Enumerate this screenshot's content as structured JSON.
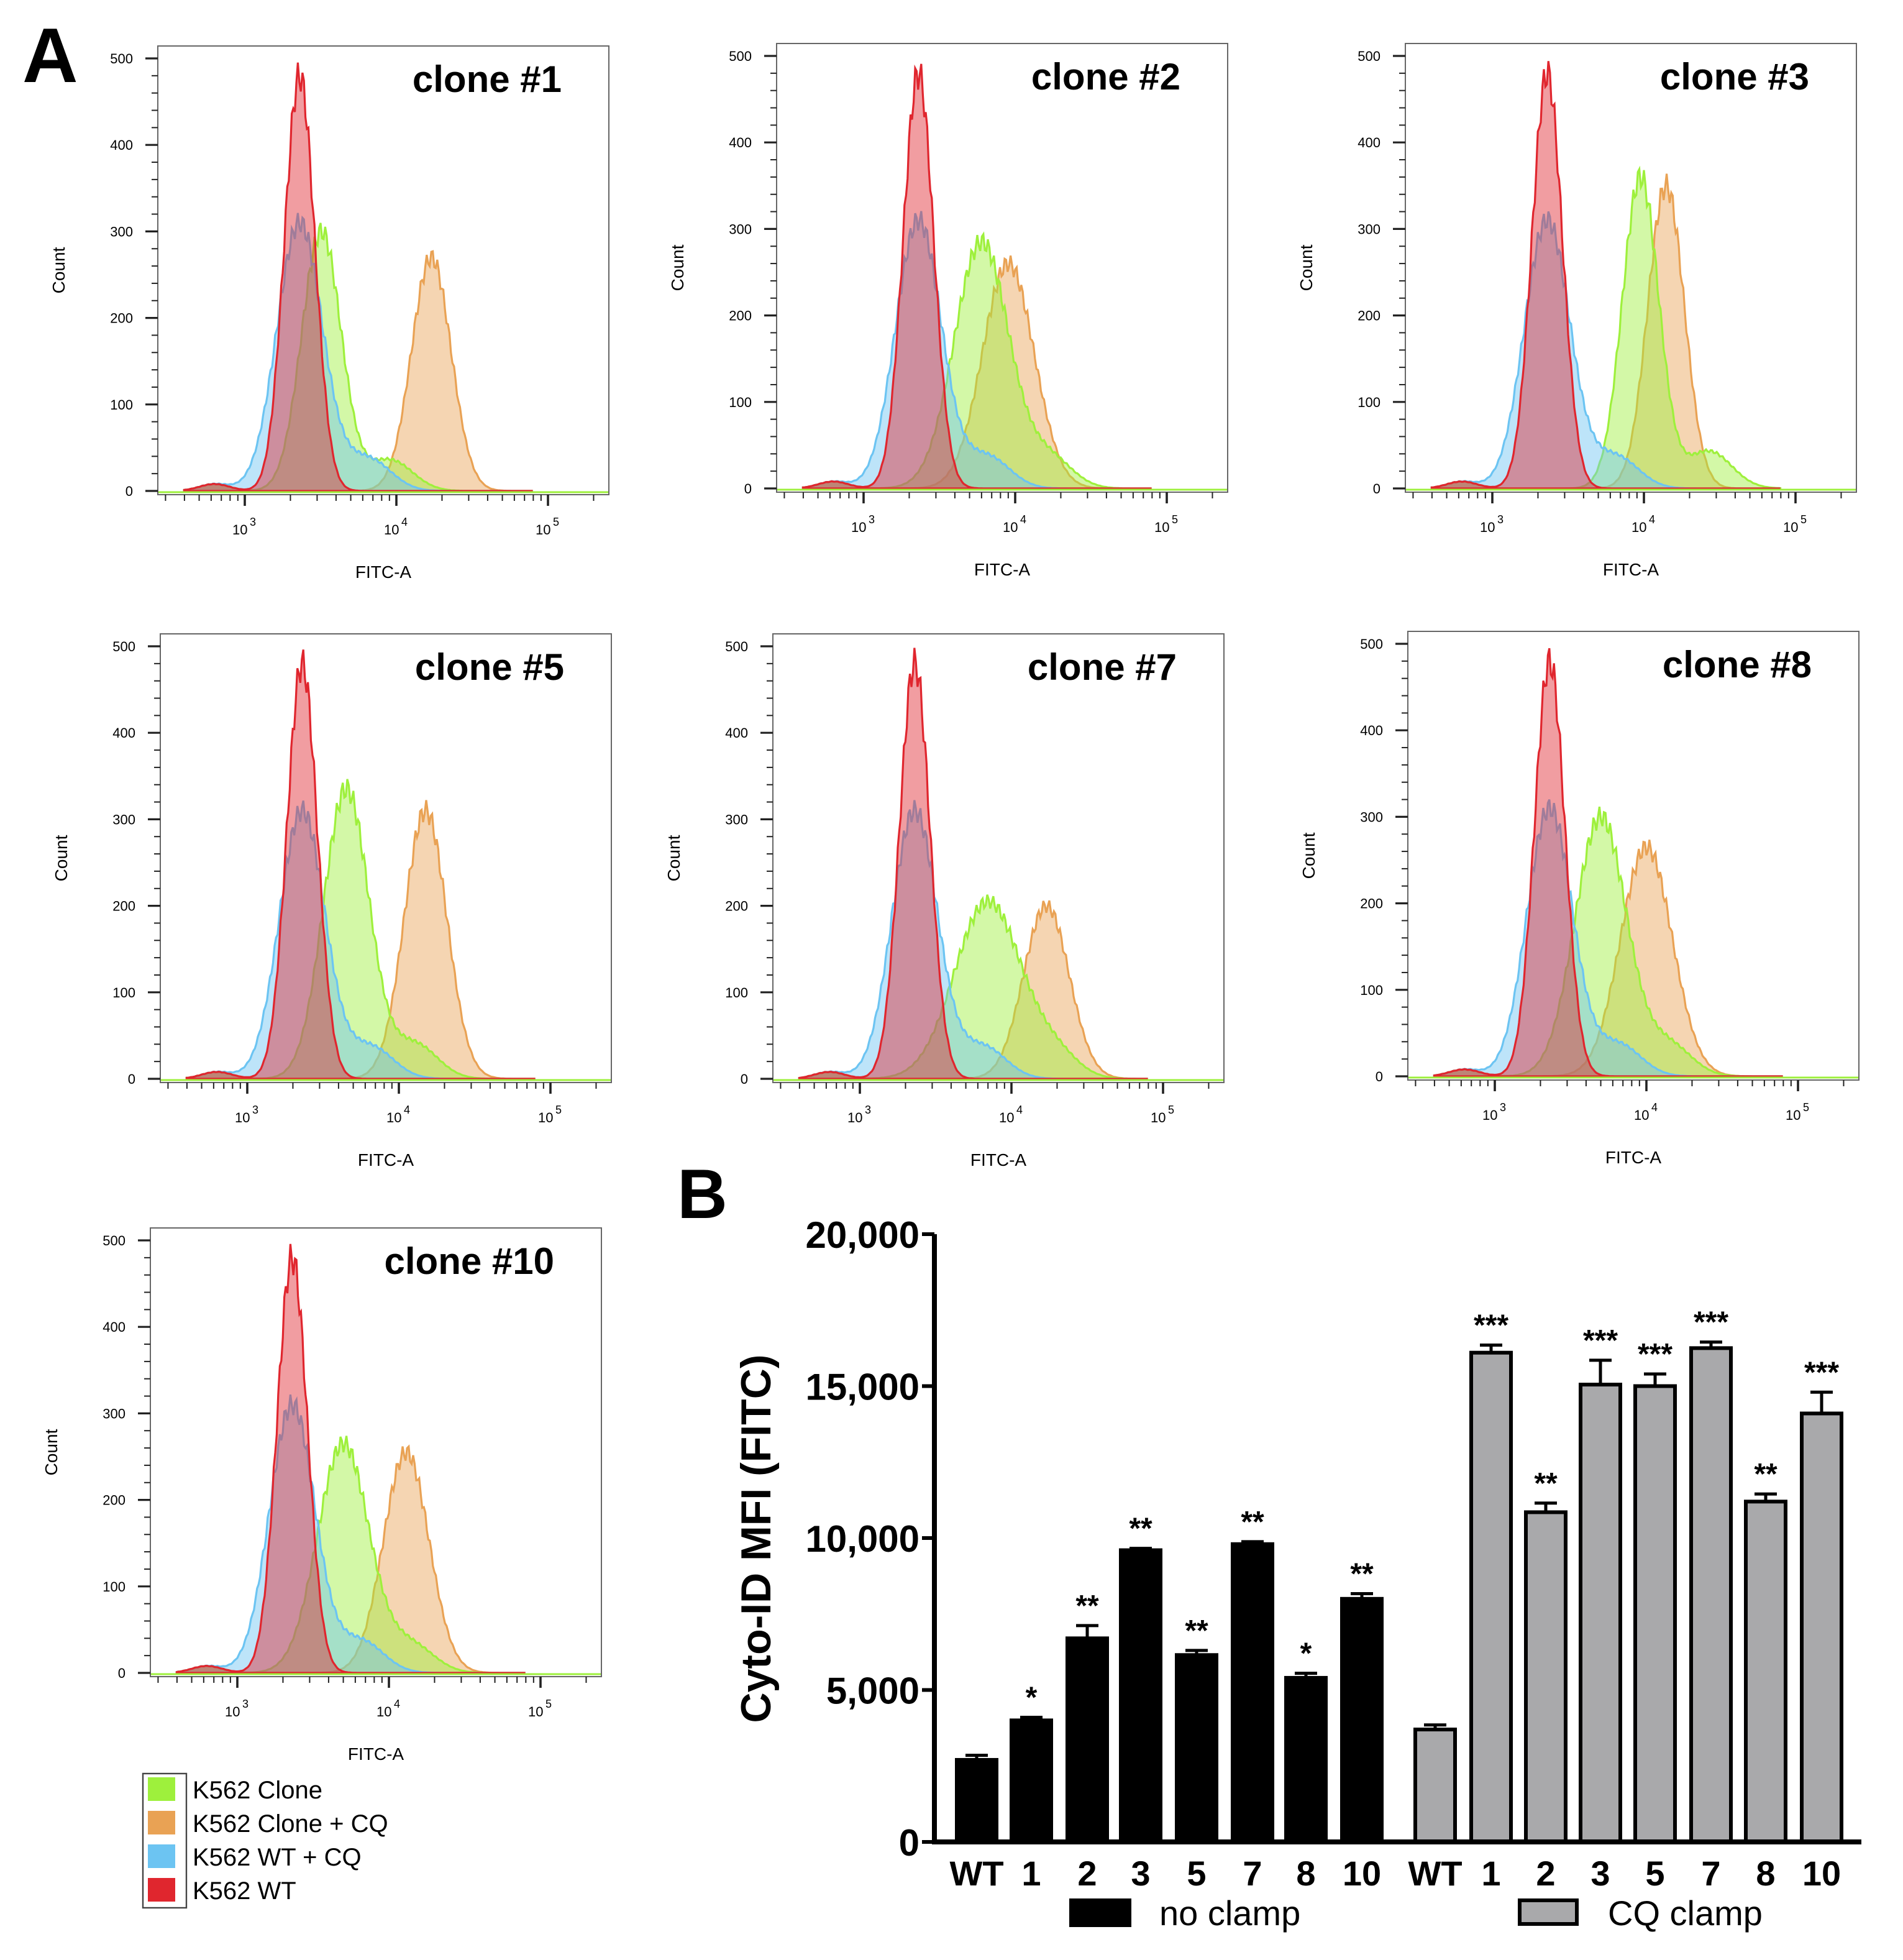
{
  "panel_a_label": "A",
  "panel_b_label": "B",
  "legend": [
    {
      "label": "K562 Clone",
      "color": "#9ef03c"
    },
    {
      "label": "K562 Clone + CQ",
      "color": "#e9a254"
    },
    {
      "label": "K562 WT + CQ",
      "color": "#6cc4f2"
    },
    {
      "label": "K562 WT",
      "color": "#e0262e"
    }
  ],
  "chart_data": [
    {
      "type": "area",
      "subtype": "flow-cytometry-histograms",
      "xlabel": "FITC-A",
      "ylabel": "Count",
      "xscale": "log",
      "xlim": [
        270,
        250000
      ],
      "ylim": [
        0,
        500
      ],
      "yticks": [
        "0",
        "100",
        "200",
        "300",
        "400",
        "500"
      ],
      "xticks": [
        {
          "base": "10",
          "exp": "3"
        },
        {
          "base": "10",
          "exp": "4"
        },
        {
          "base": "10",
          "exp": "5"
        }
      ],
      "series_colors": {
        "wt": "#e0262e",
        "wt_cq": "#6cc4f2",
        "clone": "#9ef03c",
        "clone_cq": "#e9a254"
      },
      "panels": [
        {
          "title": "clone #1",
          "peaks": {
            "wt": [
              2300,
              480,
              0.1
            ],
            "wt_cq": [
              2300,
              310,
              0.15
            ],
            "clone": [
              3200,
              300,
              0.13
            ],
            "clone_cq": [
              17000,
              270,
              0.13
            ]
          }
        },
        {
          "title": "clone #2",
          "peaks": {
            "wt": [
              2300,
              480,
              0.1
            ],
            "wt_cq": [
              2300,
              310,
              0.15
            ],
            "clone": [
              6000,
              285,
              0.18
            ],
            "clone_cq": [
              9000,
              260,
              0.17
            ]
          }
        },
        {
          "title": "clone #3",
          "peaks": {
            "wt": [
              2300,
              480,
              0.1
            ],
            "wt_cq": [
              2300,
              310,
              0.15
            ],
            "clone": [
              9500,
              360,
              0.12
            ],
            "clone_cq": [
              14000,
              350,
              0.12
            ]
          }
        },
        {
          "title": "clone #5",
          "peaks": {
            "wt": [
              2300,
              480,
              0.1
            ],
            "wt_cq": [
              2300,
              310,
              0.15
            ],
            "clone": [
              4500,
              335,
              0.15
            ],
            "clone_cq": [
              15000,
              310,
              0.14
            ]
          }
        },
        {
          "title": "clone #7",
          "peaks": {
            "wt": [
              2300,
              480,
              0.1
            ],
            "wt_cq": [
              2300,
              310,
              0.15
            ],
            "clone": [
              7000,
              205,
              0.22
            ],
            "clone_cq": [
              17000,
              200,
              0.15
            ]
          }
        },
        {
          "title": "clone #8",
          "peaks": {
            "wt": [
              2300,
              480,
              0.1
            ],
            "wt_cq": [
              2300,
              310,
              0.15
            ],
            "clone": [
              5000,
              300,
              0.17
            ],
            "clone_cq": [
              10000,
              265,
              0.17
            ]
          }
        },
        {
          "title": "clone #10",
          "peaks": {
            "wt": [
              2300,
              480,
              0.1
            ],
            "wt_cq": [
              2300,
              310,
              0.15
            ],
            "clone": [
              5000,
              265,
              0.17
            ],
            "clone_cq": [
              13000,
              255,
              0.15
            ]
          }
        }
      ]
    },
    {
      "type": "bar",
      "ylabel": "Cyto-ID MFI (FITC)",
      "ylim": [
        0,
        20000
      ],
      "yticks": [
        "0",
        "5,000",
        "10,000",
        "15,000",
        "20,000"
      ],
      "categories": [
        "WT",
        "1",
        "2",
        "3",
        "5",
        "7",
        "8",
        "10"
      ],
      "series": [
        {
          "name": "no clamp",
          "color": "#000000",
          "values": [
            2700,
            4000,
            6700,
            9600,
            6150,
            9800,
            5400,
            8000
          ],
          "errors": [
            150,
            100,
            420,
            60,
            150,
            80,
            150,
            170
          ],
          "significance": [
            "",
            "*",
            "**",
            "**",
            "**",
            "**",
            "*",
            "**"
          ]
        },
        {
          "name": "CQ clamp",
          "color": "#a9a9ab",
          "values": [
            3700,
            16100,
            10850,
            15050,
            15000,
            16250,
            11200,
            14100
          ],
          "errors": [
            150,
            250,
            300,
            800,
            400,
            200,
            250,
            700
          ],
          "significance": [
            "",
            "***",
            "**",
            "***",
            "***",
            "***",
            "**",
            "***"
          ]
        }
      ]
    }
  ]
}
